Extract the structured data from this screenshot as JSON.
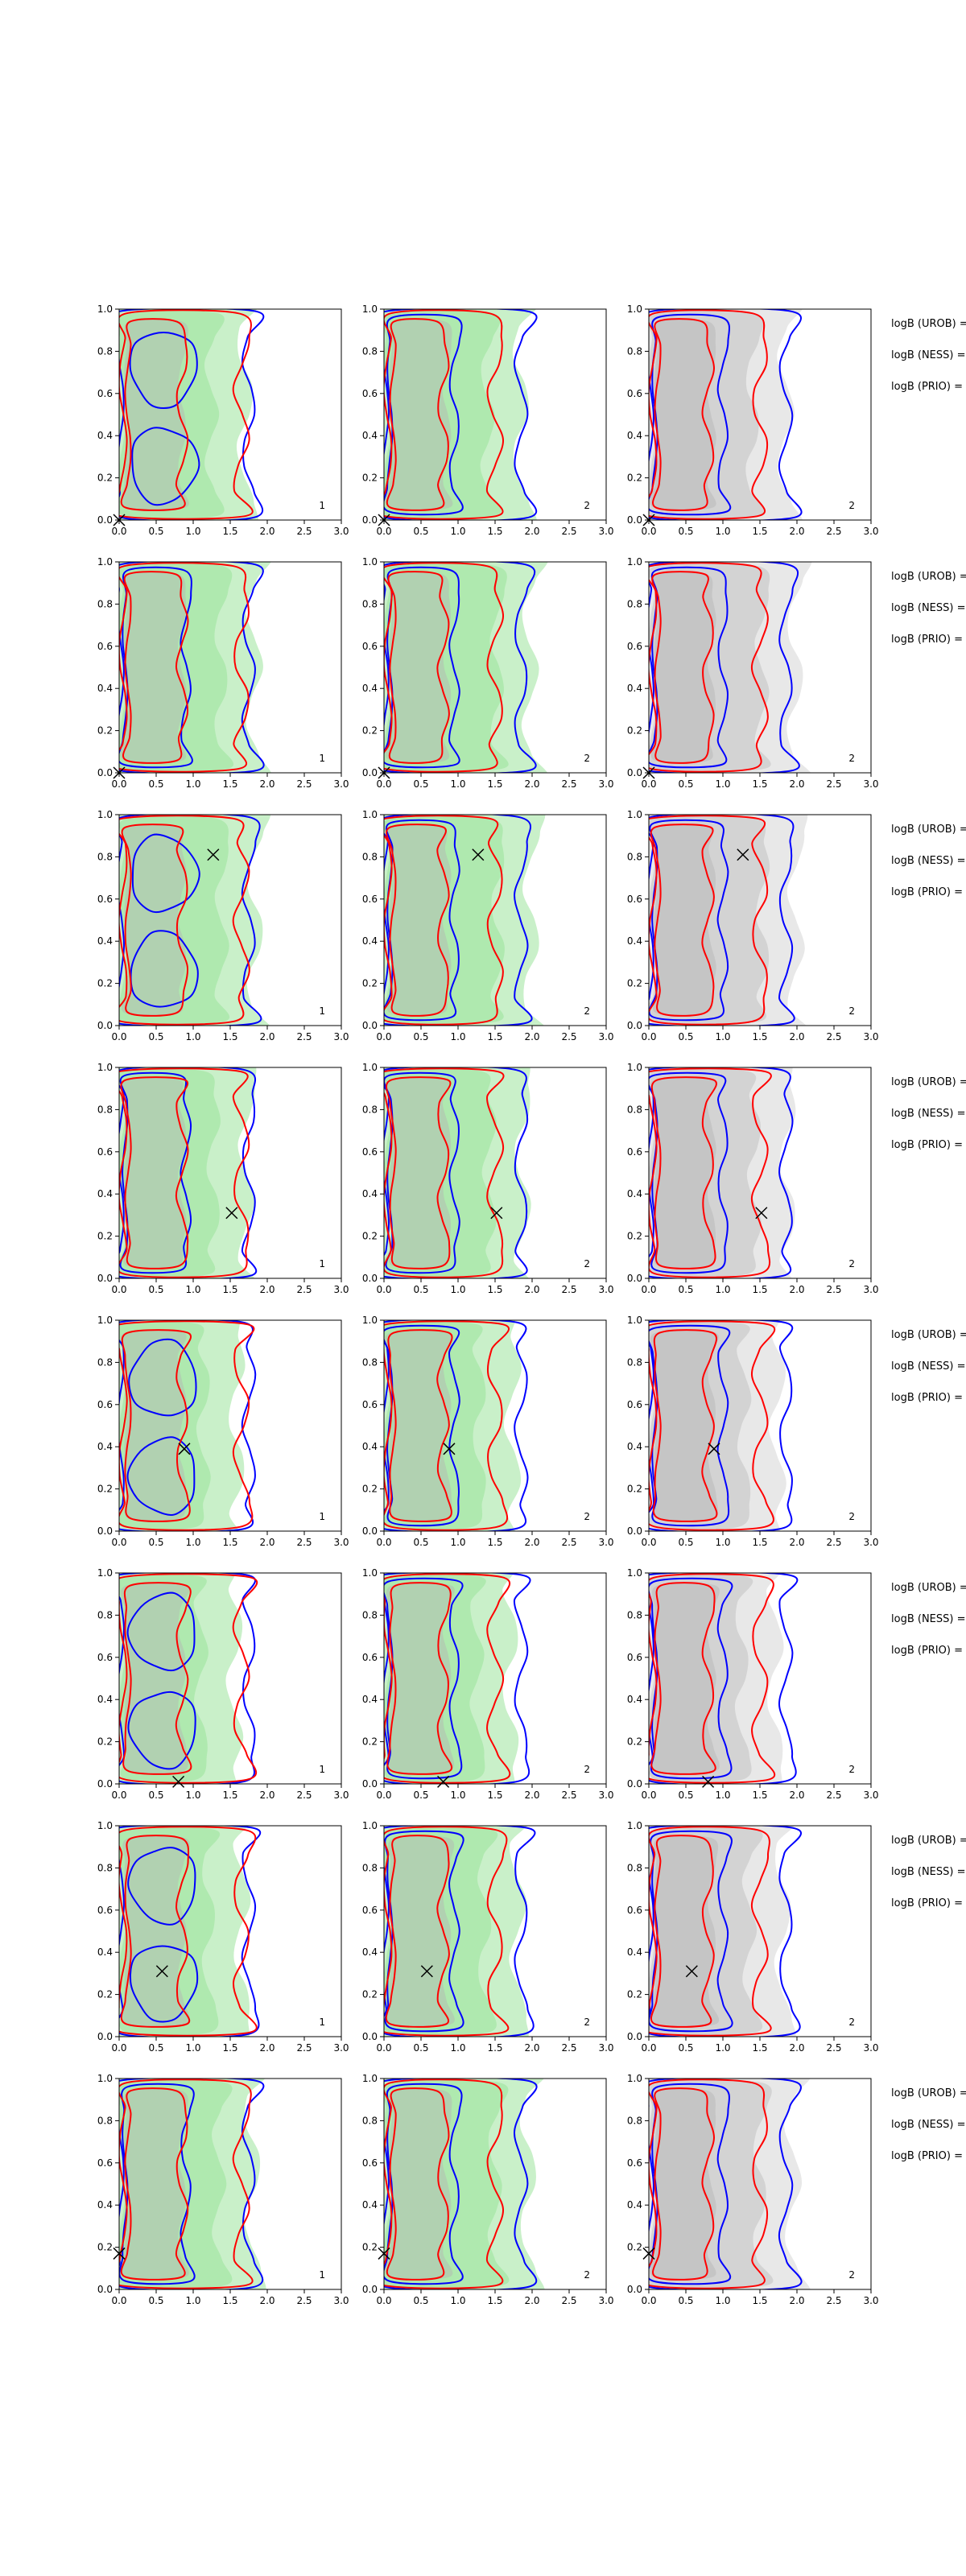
{
  "colors": {
    "green_fill": "#7fdc7f",
    "grey_fill": "#b4b4b4",
    "light_grey_fill": "#d6d6d6",
    "contour_blue": "#0000ff",
    "contour_red": "#ff0000",
    "marker": "#000000",
    "frame": "#000000"
  },
  "chart_data": {
    "type": "contour-grid",
    "rows": 8,
    "cols": 3,
    "xlim": [
      0,
      3
    ],
    "ylim": [
      0,
      1
    ],
    "x_ticks": [
      "0.0",
      "0.5",
      "1.0",
      "1.5",
      "2.0",
      "2.5",
      "3.0"
    ],
    "y_ticks": [
      "0.0",
      "0.2",
      "0.4",
      "0.6",
      "0.8",
      "1.0"
    ],
    "column_notes": [
      "1",
      "2",
      "2"
    ],
    "column_background": [
      "green",
      "green",
      "grey"
    ],
    "side_labels": [
      "logB (UROB) =",
      "logB (NESS) =",
      "logB (PRIO) ="
    ],
    "markers": [
      {
        "row": 1,
        "x": 0.0,
        "y": 0.0
      },
      {
        "row": 2,
        "x": 0.0,
        "y": 0.0
      },
      {
        "row": 3,
        "x": 1.27,
        "y": 0.81
      },
      {
        "row": 4,
        "x": 1.52,
        "y": 0.31
      },
      {
        "row": 5,
        "x": 0.88,
        "y": 0.39
      },
      {
        "row": 6,
        "x": 0.8,
        "y": 0.01
      },
      {
        "row": 7,
        "x": 0.58,
        "y": 0.31
      },
      {
        "row": 8,
        "x": 0.0,
        "y": 0.17
      }
    ]
  }
}
